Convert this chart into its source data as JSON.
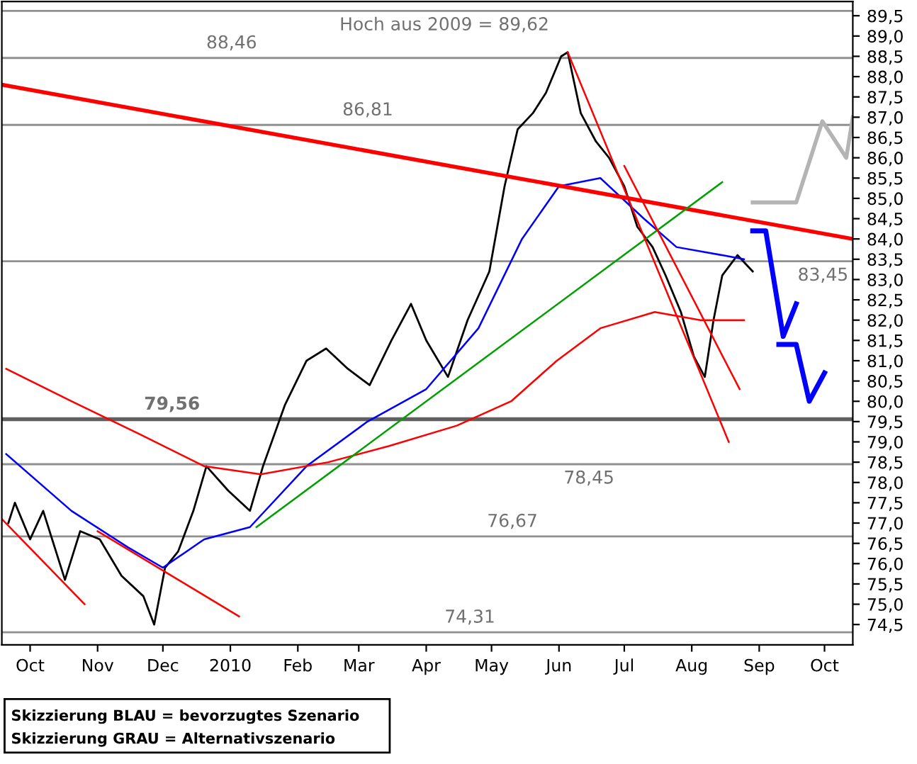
{
  "chart_data": {
    "type": "line",
    "xlim": [
      "2009-09-18",
      "2010-10-14"
    ],
    "ylim": [
      74.0,
      89.85
    ],
    "xticks": [
      {
        "value": "2009-10-01",
        "label": "Oct"
      },
      {
        "value": "2009-11-01",
        "label": "Nov"
      },
      {
        "value": "2009-12-01",
        "label": "Dec"
      },
      {
        "value": "2010-01-01",
        "label": "2010"
      },
      {
        "value": "2010-02-01",
        "label": "Feb"
      },
      {
        "value": "2010-03-01",
        "label": "Mar"
      },
      {
        "value": "2010-04-01",
        "label": "Apr"
      },
      {
        "value": "2010-05-01",
        "label": "May"
      },
      {
        "value": "2010-06-01",
        "label": "Jun"
      },
      {
        "value": "2010-07-01",
        "label": "Jul"
      },
      {
        "value": "2010-08-01",
        "label": "Aug"
      },
      {
        "value": "2010-09-01",
        "label": "Sep"
      },
      {
        "value": "2010-10-01",
        "label": "Oct"
      }
    ],
    "yticks": [
      {
        "value": 74.5,
        "label": "74,5"
      },
      {
        "value": 75.0,
        "label": "75,0"
      },
      {
        "value": 75.5,
        "label": "75,5"
      },
      {
        "value": 76.0,
        "label": "76,0"
      },
      {
        "value": 76.5,
        "label": "76,5"
      },
      {
        "value": 77.0,
        "label": "77,0"
      },
      {
        "value": 77.5,
        "label": "77,5"
      },
      {
        "value": 78.0,
        "label": "78,0"
      },
      {
        "value": 78.5,
        "label": "78,5"
      },
      {
        "value": 79.0,
        "label": "79,0"
      },
      {
        "value": 79.5,
        "label": "79,5"
      },
      {
        "value": 80.0,
        "label": "80,0"
      },
      {
        "value": 80.5,
        "label": "80,5"
      },
      {
        "value": 81.0,
        "label": "81,0"
      },
      {
        "value": 81.5,
        "label": "81,5"
      },
      {
        "value": 82.0,
        "label": "82,0"
      },
      {
        "value": 82.5,
        "label": "82,5"
      },
      {
        "value": 83.0,
        "label": "83,0"
      },
      {
        "value": 83.5,
        "label": "83,5"
      },
      {
        "value": 84.0,
        "label": "84,0"
      },
      {
        "value": 84.5,
        "label": "84,5"
      },
      {
        "value": 85.0,
        "label": "85,0"
      },
      {
        "value": 85.5,
        "label": "85,5"
      },
      {
        "value": 86.0,
        "label": "86,0"
      },
      {
        "value": 86.5,
        "label": "86,5"
      },
      {
        "value": 87.0,
        "label": "87,0"
      },
      {
        "value": 87.5,
        "label": "87,5"
      },
      {
        "value": 88.0,
        "label": "88,0"
      },
      {
        "value": 88.5,
        "label": "88,5"
      },
      {
        "value": 89.0,
        "label": "89,0"
      },
      {
        "value": 89.5,
        "label": "89,5"
      }
    ],
    "grid": false,
    "legend": false,
    "ref_lines": [
      {
        "axis": "y",
        "value": 89.62,
        "label": "Hoch aus 2009 = 89,62",
        "color": "#909090"
      },
      {
        "axis": "y",
        "value": 88.46,
        "label": "88,46",
        "color": "#909090"
      },
      {
        "axis": "y",
        "value": 86.81,
        "label": "86,81",
        "color": "#909090"
      },
      {
        "axis": "y",
        "value": 83.45,
        "label": "83,45",
        "color": "#909090"
      },
      {
        "axis": "y",
        "value": 79.56,
        "label": "79,56",
        "color": "#606060"
      },
      {
        "axis": "y",
        "value": 78.45,
        "label": "78,45",
        "color": "#909090"
      },
      {
        "axis": "y",
        "value": 76.67,
        "label": "76,67",
        "color": "#909090"
      },
      {
        "axis": "y",
        "value": 74.31,
        "label": "74,31",
        "color": "#909090"
      }
    ],
    "series": [
      {
        "color": "#000000",
        "x": [
          "2009-09-21",
          "2009-09-24",
          "2009-10-01",
          "2009-10-07",
          "2009-10-17",
          "2009-10-24",
          "2009-11-02",
          "2009-11-12",
          "2009-11-22",
          "2009-11-27",
          "2009-12-02",
          "2009-12-08",
          "2009-12-15",
          "2009-12-21",
          "2009-12-31",
          "2010-01-10",
          "2010-01-16",
          "2010-01-26",
          "2010-02-05",
          "2010-02-14",
          "2010-02-24",
          "2010-03-06",
          "2010-03-16",
          "2010-03-25",
          "2010-04-01",
          "2010-04-11",
          "2010-04-20",
          "2010-04-30",
          "2010-05-07",
          "2010-05-13",
          "2010-05-20",
          "2010-05-26",
          "2010-06-02",
          "2010-06-05",
          "2010-06-11",
          "2010-06-18",
          "2010-06-24",
          "2010-07-01",
          "2010-07-07",
          "2010-07-14",
          "2010-07-20",
          "2010-07-27",
          "2010-08-02",
          "2010-08-07",
          "2010-08-11",
          "2010-08-15",
          "2010-08-22",
          "2010-08-29"
        ],
        "values": [
          77.0,
          77.5,
          76.6,
          77.3,
          75.6,
          76.8,
          76.6,
          75.7,
          75.2,
          74.5,
          75.9,
          76.3,
          77.3,
          78.4,
          77.8,
          77.3,
          78.4,
          79.9,
          81.0,
          81.3,
          80.8,
          80.4,
          81.5,
          82.4,
          81.5,
          80.6,
          82.0,
          83.2,
          85.3,
          86.7,
          87.1,
          87.6,
          88.5,
          88.6,
          87.1,
          86.4,
          86.0,
          85.3,
          84.3,
          83.8,
          83.1,
          82.2,
          81.1,
          80.6,
          82.0,
          83.1,
          83.6,
          83.2
        ]
      },
      {
        "color": "#0000ff",
        "x": [
          "2009-09-20",
          "2009-10-20",
          "2009-11-15",
          "2009-12-01",
          "2009-12-20",
          "2010-01-10",
          "2010-02-05",
          "2010-03-05",
          "2010-04-01",
          "2010-04-25",
          "2010-05-15",
          "2010-06-01",
          "2010-06-20",
          "2010-07-10",
          "2010-07-25",
          "2010-08-15",
          "2010-08-25"
        ],
        "values": [
          78.7,
          77.3,
          76.4,
          75.9,
          76.6,
          76.9,
          78.4,
          79.5,
          80.3,
          81.8,
          84.0,
          85.3,
          85.5,
          84.5,
          83.8,
          83.6,
          83.5
        ]
      },
      {
        "color": "#ff0000",
        "x": [
          "2009-09-20",
          "2009-10-20",
          "2009-11-20",
          "2009-12-20",
          "2010-01-15",
          "2010-02-15",
          "2010-03-15",
          "2010-04-15",
          "2010-05-10",
          "2010-05-31",
          "2010-06-20",
          "2010-07-15",
          "2010-08-05",
          "2010-08-25"
        ],
        "values": [
          80.8,
          80.0,
          79.2,
          78.4,
          78.2,
          78.5,
          78.9,
          79.4,
          80.0,
          81.0,
          81.8,
          82.2,
          82.0,
          82.0
        ]
      },
      {
        "color": "#ff0000",
        "x": [
          "2009-09-18",
          "2010-10-14"
        ],
        "values": [
          87.8,
          84.0
        ]
      },
      {
        "color": "#00a000",
        "x": [
          "2010-01-13",
          "2010-08-15"
        ],
        "values": [
          76.9,
          85.4
        ]
      },
      {
        "color": "#ff0000",
        "x": [
          "2009-09-18",
          "2009-10-26"
        ],
        "values": [
          77.1,
          75.0
        ]
      },
      {
        "color": "#ff0000",
        "x": [
          "2009-11-01",
          "2010-01-05"
        ],
        "values": [
          76.8,
          74.7
        ]
      },
      {
        "color": "#ff0000",
        "x": [
          "2010-06-05",
          "2010-08-18"
        ],
        "values": [
          88.6,
          79.0
        ]
      },
      {
        "color": "#ff0000",
        "x": [
          "2010-07-01",
          "2010-08-23"
        ],
        "values": [
          85.8,
          80.3
        ]
      },
      {
        "color": "#0000ff",
        "x": [
          "2010-08-29",
          "2010-09-04",
          "2010-09-12",
          "2010-09-18"
        ],
        "values": [
          84.2,
          84.2,
          81.6,
          82.4
        ]
      },
      {
        "color": "#0000ff",
        "x": [
          "2010-09-10",
          "2010-09-18",
          "2010-09-24",
          "2010-10-01"
        ],
        "values": [
          81.4,
          81.4,
          80.0,
          80.7
        ]
      },
      {
        "color": "#b4b4b4",
        "x": [
          "2010-08-29",
          "2010-09-18",
          "2010-09-30",
          "2010-10-11",
          "2010-10-14"
        ],
        "values": [
          84.9,
          84.9,
          86.9,
          86.0,
          87.0
        ]
      }
    ],
    "annotations": [
      "Skizzierung BLAU = bevorzugtes Szenario",
      "Skizzierung GRAU = Alternativszenario"
    ]
  }
}
